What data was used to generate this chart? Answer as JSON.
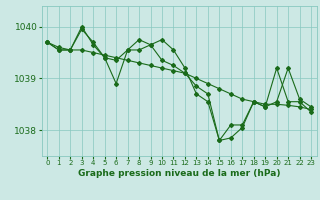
{
  "line1": {
    "x": [
      0,
      1,
      2,
      3,
      4,
      5,
      6,
      7,
      8,
      9,
      10,
      11,
      12,
      13,
      14,
      15,
      16,
      17,
      18,
      19,
      20,
      21,
      22,
      23
    ],
    "y": [
      1039.7,
      1039.55,
      1039.55,
      1040.0,
      1039.65,
      1039.4,
      1038.9,
      1039.55,
      1039.75,
      1039.65,
      1039.35,
      1039.25,
      1039.1,
      1038.85,
      1038.7,
      1037.8,
      1037.85,
      1038.05,
      1038.55,
      1038.45,
      1038.55,
      1039.2,
      1038.6,
      1038.45
    ]
  },
  "line2": {
    "x": [
      0,
      1,
      2,
      3,
      4,
      5,
      6,
      7,
      8,
      9,
      10,
      11,
      12,
      13,
      14,
      15,
      16,
      17,
      18,
      19,
      20,
      21,
      22,
      23
    ],
    "y": [
      1039.7,
      1039.55,
      1039.55,
      1039.95,
      1039.7,
      1039.4,
      1039.35,
      1039.55,
      1039.55,
      1039.65,
      1039.75,
      1039.55,
      1039.2,
      1038.7,
      1038.55,
      1037.8,
      1038.1,
      1038.1,
      1038.55,
      1038.45,
      1039.2,
      1038.55,
      1038.55,
      1038.35
    ]
  },
  "line3": {
    "x": [
      0,
      1,
      2,
      3,
      4,
      5,
      6,
      7,
      8,
      9,
      10,
      11,
      12,
      13,
      14,
      15,
      16,
      17,
      18,
      19,
      20,
      21,
      22,
      23
    ],
    "y": [
      1039.7,
      1039.6,
      1039.55,
      1039.55,
      1039.5,
      1039.45,
      1039.4,
      1039.35,
      1039.3,
      1039.25,
      1039.2,
      1039.15,
      1039.1,
      1039.0,
      1038.9,
      1038.8,
      1038.7,
      1038.6,
      1038.55,
      1038.5,
      1038.5,
      1038.48,
      1038.45,
      1038.4
    ]
  },
  "line_color": "#1a6b1a",
  "bg_color": "#cce8e4",
  "grid_color": "#88c8c0",
  "xlabel": "Graphe pression niveau de la mer (hPa)",
  "ylim": [
    1037.5,
    1040.4
  ],
  "xlim": [
    -0.5,
    23.5
  ],
  "yticks": [
    1038,
    1039,
    1040
  ],
  "xticks": [
    0,
    1,
    2,
    3,
    4,
    5,
    6,
    7,
    8,
    9,
    10,
    11,
    12,
    13,
    14,
    15,
    16,
    17,
    18,
    19,
    20,
    21,
    22,
    23
  ]
}
